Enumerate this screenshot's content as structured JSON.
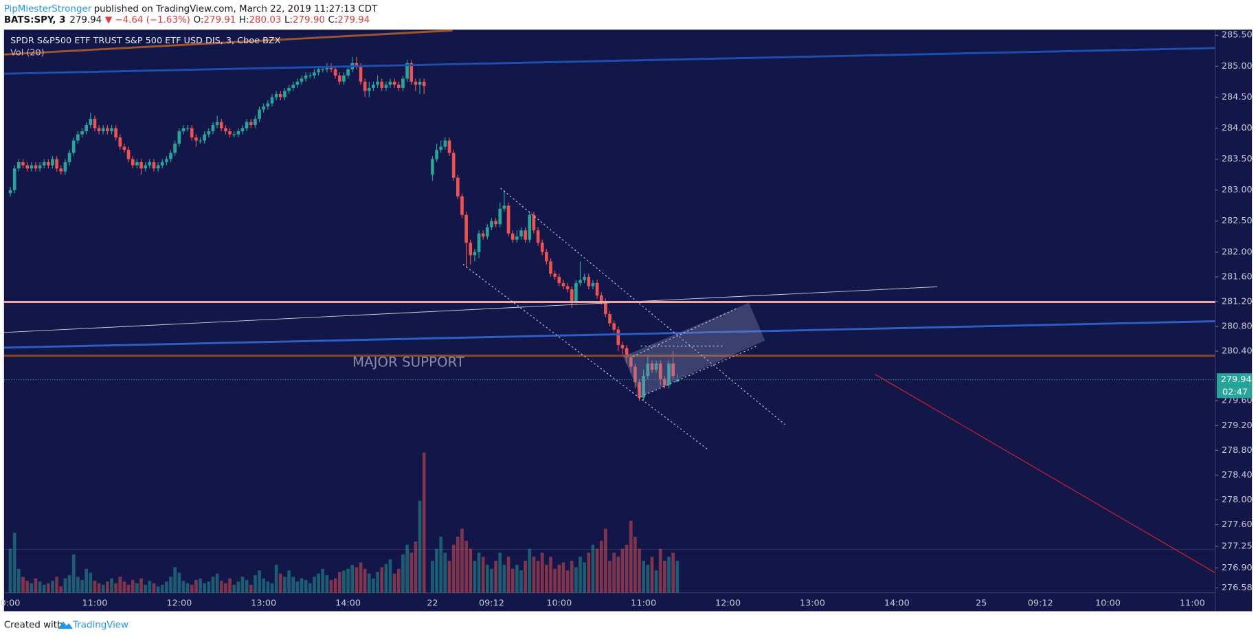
{
  "header": {
    "author": "PipMiesterStronger",
    "byline": "published on TradingView.com, March 22, 2019 11:27:13 CDT",
    "symbol": "BATS:SPY, 3",
    "last": "279.94",
    "change": "▼ −4.64 (−1.63%)",
    "ohlc": [
      {
        "label": "O:",
        "value": "279.91"
      },
      {
        "label": "H:",
        "value": "280.03"
      },
      {
        "label": "L:",
        "value": "279.90"
      },
      {
        "label": "C:",
        "value": "279.94"
      }
    ]
  },
  "chart_data": {
    "type": "candlestick",
    "title": "SPDR S&P500 ETF TRUST S&P 500 ETF USD DIS, 3, Cboe BZX",
    "volume_label": "Vol (20)",
    "annotation": "MAJOR SUPPORT",
    "up_color": "#26a69a",
    "down_color": "#ef5350",
    "last_price": {
      "value": 279.94,
      "label": "279.94"
    },
    "countdown": "02:47",
    "xlim": [
      -1.5,
      285.4
    ],
    "xticks": [
      {
        "value": 0,
        "label": "0:00"
      },
      {
        "value": 20,
        "label": "11:00"
      },
      {
        "value": 40,
        "label": "12:00"
      },
      {
        "value": 60,
        "label": "13:00"
      },
      {
        "value": 80,
        "label": "14:00"
      },
      {
        "value": 100,
        "label": "22"
      },
      {
        "value": 114,
        "label": "09:12"
      },
      {
        "value": 130,
        "label": "10:00"
      },
      {
        "value": 150,
        "label": "11:00"
      },
      {
        "value": 170,
        "label": "12:00"
      },
      {
        "value": 190,
        "label": "13:00"
      },
      {
        "value": 210,
        "label": "14:00"
      },
      {
        "value": 230,
        "label": "25"
      },
      {
        "value": 244,
        "label": "09:12"
      },
      {
        "value": 260,
        "label": "10:00"
      },
      {
        "value": 280,
        "label": "11:00"
      }
    ],
    "ylim": [
      276.5,
      285.59
    ],
    "yticks": [
      {
        "value": 285.5,
        "label": "285.50"
      },
      {
        "value": 285,
        "label": "285.00"
      },
      {
        "value": 284.5,
        "label": "284.50"
      },
      {
        "value": 284,
        "label": "284.00"
      },
      {
        "value": 283.5,
        "label": "283.50"
      },
      {
        "value": 283,
        "label": "283.00"
      },
      {
        "value": 282.5,
        "label": "282.50"
      },
      {
        "value": 282,
        "label": "282.00"
      },
      {
        "value": 281.6,
        "label": "281.60"
      },
      {
        "value": 281.2,
        "label": "281.20"
      },
      {
        "value": 280.8,
        "label": "280.80"
      },
      {
        "value": 280.4,
        "label": "280.40"
      },
      {
        "value": 279.6,
        "label": "279.60"
      },
      {
        "value": 279.2,
        "label": "279.20"
      },
      {
        "value": 278.8,
        "label": "278.80"
      },
      {
        "value": 278.4,
        "label": "278.40"
      },
      {
        "value": 278,
        "label": "278.00"
      },
      {
        "value": 277.6,
        "label": "277.60"
      },
      {
        "value": 277.25,
        "label": "277.25"
      },
      {
        "value": 276.9,
        "label": "276.90"
      },
      {
        "value": 276.58,
        "label": "276.58"
      }
    ],
    "x": [
      0,
      1,
      2,
      3,
      4,
      5,
      6,
      7,
      8,
      9,
      10,
      11,
      12,
      13,
      14,
      15,
      16,
      17,
      18,
      19,
      20,
      21,
      22,
      23,
      24,
      25,
      26,
      27,
      28,
      29,
      30,
      31,
      32,
      33,
      34,
      35,
      36,
      37,
      38,
      39,
      40,
      41,
      42,
      43,
      44,
      45,
      46,
      47,
      48,
      49,
      50,
      51,
      52,
      53,
      54,
      55,
      56,
      57,
      58,
      59,
      60,
      61,
      62,
      63,
      64,
      65,
      66,
      67,
      68,
      69,
      70,
      71,
      72,
      73,
      74,
      75,
      76,
      77,
      78,
      79,
      80,
      81,
      82,
      83,
      84,
      85,
      86,
      87,
      88,
      89,
      90,
      91,
      92,
      93,
      94,
      95,
      96,
      97,
      98,
      100,
      101,
      102,
      103,
      104,
      105,
      106,
      107,
      108,
      109,
      110,
      111,
      112,
      113,
      114,
      115,
      116,
      117,
      118,
      119,
      120,
      121,
      122,
      123,
      124,
      125,
      126,
      127,
      128,
      129,
      130,
      131,
      132,
      133,
      134,
      135,
      136,
      137,
      138,
      139,
      140,
      141,
      142,
      143,
      144,
      145,
      146,
      147,
      148,
      149,
      150,
      151,
      152,
      153,
      154,
      155,
      156,
      157,
      158
    ],
    "open": [
      282.95,
      283.0,
      283.35,
      283.45,
      283.4,
      283.35,
      283.4,
      283.35,
      283.4,
      283.45,
      283.4,
      283.5,
      283.35,
      283.3,
      283.45,
      283.6,
      283.8,
      283.9,
      283.95,
      284.05,
      284.15,
      284.0,
      283.95,
      284.0,
      283.95,
      284.0,
      283.85,
      283.7,
      283.65,
      283.5,
      283.4,
      283.45,
      283.35,
      283.4,
      283.45,
      283.35,
      283.4,
      283.45,
      283.5,
      283.6,
      283.75,
      283.95,
      284.0,
      284.0,
      283.85,
      283.8,
      283.8,
      283.9,
      283.95,
      284.05,
      284.1,
      284.0,
      283.95,
      283.9,
      283.9,
      283.95,
      284.0,
      284.1,
      284.05,
      284.15,
      284.3,
      284.35,
      284.4,
      284.5,
      284.55,
      284.5,
      284.6,
      284.65,
      284.7,
      284.75,
      284.8,
      284.85,
      284.85,
      284.9,
      284.95,
      284.95,
      285.0,
      284.95,
      284.85,
      284.75,
      284.85,
      284.95,
      285.05,
      285.0,
      284.75,
      284.6,
      284.65,
      284.7,
      284.75,
      284.65,
      284.7,
      284.75,
      284.7,
      284.65,
      284.8,
      285.05,
      284.75,
      284.7,
      284.75,
      283.25,
      283.5,
      283.65,
      283.7,
      283.8,
      283.6,
      283.2,
      282.9,
      282.6,
      282.15,
      281.95,
      282.0,
      282.3,
      282.25,
      282.4,
      282.5,
      282.45,
      282.7,
      282.75,
      282.3,
      282.2,
      282.25,
      282.35,
      282.2,
      282.6,
      282.35,
      282.15,
      282.0,
      281.85,
      281.65,
      281.6,
      281.5,
      281.45,
      281.4,
      281.2,
      281.5,
      281.55,
      281.6,
      281.45,
      281.5,
      281.3,
      281.2,
      281.0,
      280.85,
      280.75,
      280.5,
      280.45,
      280.3,
      280.15,
      279.9,
      279.65,
      280.0,
      280.2,
      280.1,
      280.2,
      279.95,
      279.85,
      280.2,
      279.91
    ],
    "high": [
      283.05,
      283.4,
      283.5,
      283.5,
      283.45,
      283.45,
      283.45,
      283.45,
      283.5,
      283.5,
      283.55,
      283.55,
      283.4,
      283.5,
      283.65,
      283.85,
      283.95,
      284.0,
      284.1,
      284.25,
      284.2,
      284.05,
      284.05,
      284.05,
      284.05,
      284.05,
      283.9,
      283.75,
      283.7,
      283.55,
      283.5,
      283.5,
      283.45,
      283.5,
      283.5,
      283.45,
      283.5,
      283.55,
      283.65,
      283.8,
      284.0,
      284.05,
      284.05,
      284.05,
      283.9,
      283.85,
      283.95,
      284.0,
      284.1,
      284.2,
      284.15,
      284.05,
      284.0,
      283.95,
      284.0,
      284.05,
      284.15,
      284.15,
      284.2,
      284.35,
      284.4,
      284.45,
      284.55,
      284.6,
      284.6,
      284.65,
      284.7,
      284.75,
      284.8,
      284.85,
      284.9,
      284.9,
      284.95,
      285.0,
      285.0,
      285.05,
      285.05,
      285.0,
      284.9,
      284.9,
      285.0,
      285.15,
      285.15,
      285.05,
      284.8,
      284.75,
      284.75,
      284.85,
      284.8,
      284.75,
      284.8,
      284.8,
      284.75,
      284.85,
      285.1,
      285.1,
      284.8,
      284.8,
      284.8,
      283.55,
      283.75,
      283.8,
      283.85,
      283.85,
      283.65,
      283.25,
      282.95,
      282.65,
      282.2,
      282.05,
      282.35,
      282.35,
      282.45,
      282.55,
      282.55,
      282.8,
      283.0,
      282.8,
      282.35,
      282.35,
      282.4,
      282.4,
      282.65,
      282.65,
      282.4,
      282.2,
      282.05,
      281.9,
      281.7,
      281.65,
      281.55,
      281.5,
      281.45,
      281.55,
      281.85,
      281.65,
      281.65,
      281.55,
      281.55,
      281.35,
      281.25,
      281.05,
      280.9,
      280.8,
      280.55,
      280.5,
      280.35,
      280.2,
      279.95,
      280.1,
      280.35,
      280.25,
      280.25,
      280.25,
      280.0,
      280.25,
      280.4,
      280.03
    ],
    "low": [
      282.9,
      282.95,
      283.3,
      283.35,
      283.3,
      283.3,
      283.3,
      283.3,
      283.35,
      283.35,
      283.35,
      283.3,
      283.25,
      283.25,
      283.4,
      283.55,
      283.75,
      283.85,
      283.9,
      284.0,
      283.95,
      283.9,
      283.9,
      283.9,
      283.9,
      283.8,
      283.65,
      283.6,
      283.45,
      283.35,
      283.35,
      283.25,
      283.3,
      283.35,
      283.3,
      283.3,
      283.35,
      283.4,
      283.45,
      283.55,
      283.7,
      283.9,
      283.95,
      283.8,
      283.7,
      283.75,
      283.75,
      283.85,
      283.9,
      284.0,
      283.95,
      283.9,
      283.85,
      283.85,
      283.85,
      283.9,
      283.95,
      284.0,
      284.0,
      284.1,
      284.25,
      284.3,
      284.35,
      284.45,
      284.45,
      284.45,
      284.55,
      284.6,
      284.65,
      284.7,
      284.75,
      284.8,
      284.8,
      284.85,
      284.9,
      284.9,
      284.9,
      284.8,
      284.7,
      284.7,
      284.8,
      284.9,
      284.95,
      284.7,
      284.5,
      284.5,
      284.6,
      284.65,
      284.6,
      284.6,
      284.65,
      284.65,
      284.6,
      284.6,
      284.75,
      284.7,
      284.6,
      284.55,
      284.55,
      283.15,
      283.45,
      283.6,
      283.65,
      283.55,
      283.15,
      282.85,
      282.55,
      281.75,
      281.8,
      281.85,
      281.9,
      282.2,
      282.2,
      282.35,
      282.4,
      282.4,
      282.65,
      282.25,
      282.15,
      282.15,
      282.2,
      282.15,
      282.15,
      282.3,
      282.1,
      281.95,
      281.8,
      281.6,
      281.55,
      281.45,
      281.4,
      281.35,
      281.1,
      281.15,
      281.45,
      281.5,
      281.4,
      281.4,
      281.25,
      281.15,
      280.95,
      280.8,
      280.7,
      280.4,
      280.35,
      280.2,
      280.05,
      279.8,
      279.6,
      279.6,
      279.95,
      280.05,
      280.05,
      279.85,
      279.8,
      279.8,
      279.95,
      279.9
    ],
    "close": [
      283.0,
      283.35,
      283.45,
      283.4,
      283.35,
      283.4,
      283.35,
      283.4,
      283.45,
      283.4,
      283.5,
      283.35,
      283.3,
      283.45,
      283.6,
      283.8,
      283.9,
      283.95,
      284.05,
      284.15,
      284.0,
      283.95,
      284.0,
      283.95,
      284.0,
      283.85,
      283.7,
      283.65,
      283.5,
      283.4,
      283.45,
      283.35,
      283.4,
      283.45,
      283.35,
      283.4,
      283.45,
      283.5,
      283.6,
      283.75,
      283.95,
      284.0,
      284.0,
      283.85,
      283.8,
      283.8,
      283.9,
      283.95,
      284.05,
      284.1,
      284.0,
      283.95,
      283.9,
      283.9,
      283.95,
      284.0,
      284.1,
      284.05,
      284.15,
      284.3,
      284.35,
      284.4,
      284.5,
      284.55,
      284.5,
      284.6,
      284.65,
      284.7,
      284.75,
      284.8,
      284.85,
      284.85,
      284.9,
      284.95,
      284.95,
      285.0,
      284.95,
      284.85,
      284.75,
      284.85,
      284.95,
      285.05,
      285.0,
      284.75,
      284.6,
      284.65,
      284.7,
      284.75,
      284.65,
      284.7,
      284.75,
      284.7,
      284.65,
      284.8,
      285.05,
      284.75,
      284.7,
      284.75,
      284.68,
      283.5,
      283.65,
      283.7,
      283.8,
      283.6,
      283.2,
      282.9,
      282.6,
      282.15,
      281.95,
      282.0,
      282.3,
      282.25,
      282.4,
      282.5,
      282.45,
      282.7,
      282.75,
      282.3,
      282.2,
      282.25,
      282.35,
      282.2,
      282.6,
      282.35,
      282.15,
      282.0,
      281.85,
      281.65,
      281.6,
      281.5,
      281.45,
      281.4,
      281.2,
      281.5,
      281.55,
      281.6,
      281.45,
      281.5,
      281.3,
      281.2,
      281.0,
      280.85,
      280.75,
      280.5,
      280.45,
      280.3,
      280.15,
      279.9,
      279.65,
      280.0,
      280.2,
      280.1,
      280.2,
      279.95,
      279.85,
      280.2,
      280.0,
      279.94
    ],
    "volume": [
      55000,
      75000,
      30000,
      20000,
      15000,
      12000,
      18000,
      14000,
      10000,
      12000,
      15000,
      20000,
      8000,
      18000,
      22000,
      48000,
      20000,
      16000,
      30000,
      25000,
      15000,
      12000,
      10000,
      14000,
      18000,
      12000,
      20000,
      14000,
      10000,
      16000,
      12000,
      18000,
      10000,
      15000,
      12000,
      8000,
      10000,
      14000,
      20000,
      32000,
      25000,
      15000,
      12000,
      10000,
      16000,
      18000,
      12000,
      14000,
      20000,
      24000,
      15000,
      12000,
      18000,
      10000,
      14000,
      20000,
      16000,
      10000,
      22000,
      28000,
      18000,
      14000,
      12000,
      35000,
      24000,
      20000,
      28000,
      20000,
      14000,
      18000,
      16000,
      12000,
      20000,
      24000,
      30000,
      22000,
      16000,
      18000,
      26000,
      28000,
      30000,
      35000,
      32000,
      38000,
      30000,
      24000,
      18000,
      26000,
      32000,
      36000,
      42000,
      24000,
      30000,
      48000,
      60000,
      50000,
      64000,
      115000,
      175000,
      40000,
      55000,
      70000,
      50000,
      40000,
      60000,
      70000,
      80000,
      65000,
      55000,
      40000,
      50000,
      45000,
      35000,
      30000,
      40000,
      50000,
      35000,
      45000,
      30000,
      35000,
      28000,
      40000,
      55000,
      45000,
      40000,
      50000,
      35000,
      45000,
      30000,
      35000,
      38000,
      28000,
      40000,
      32000,
      45000,
      38000,
      50000,
      60000,
      55000,
      65000,
      80000,
      40000,
      50000,
      45000,
      55000,
      60000,
      90000,
      70000,
      55000,
      40000,
      35000,
      45000,
      28000,
      55000,
      40000,
      45000,
      50000,
      40000
    ]
  },
  "footer": {
    "created": "Created with",
    "brand": "TradingView"
  }
}
